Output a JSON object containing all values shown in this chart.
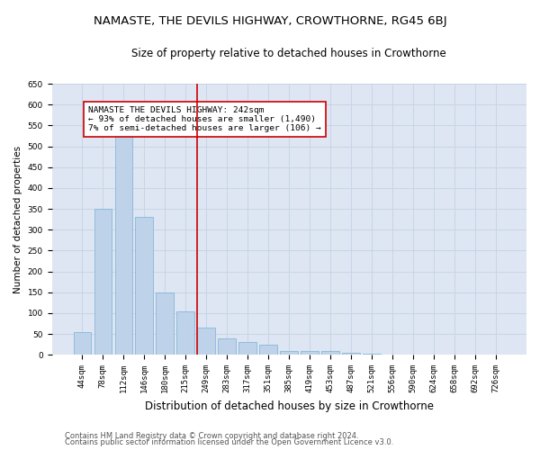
{
  "title": "NAMASTE, THE DEVILS HIGHWAY, CROWTHORNE, RG45 6BJ",
  "subtitle": "Size of property relative to detached houses in Crowthorne",
  "xlabel": "Distribution of detached houses by size in Crowthorne",
  "ylabel": "Number of detached properties",
  "categories": [
    "44sqm",
    "78sqm",
    "112sqm",
    "146sqm",
    "180sqm",
    "215sqm",
    "249sqm",
    "283sqm",
    "317sqm",
    "351sqm",
    "385sqm",
    "419sqm",
    "453sqm",
    "487sqm",
    "521sqm",
    "556sqm",
    "590sqm",
    "624sqm",
    "658sqm",
    "692sqm",
    "726sqm"
  ],
  "values": [
    55,
    350,
    560,
    330,
    150,
    105,
    65,
    40,
    30,
    25,
    10,
    10,
    10,
    5,
    2,
    1,
    0,
    1,
    0,
    0,
    1
  ],
  "bar_color": "#bed3ea",
  "bar_edge_color": "#7aafd4",
  "grid_color": "#c8d4e8",
  "background_color": "#dde6f2",
  "vline_color": "#cc0000",
  "annotation_text": "NAMASTE THE DEVILS HIGHWAY: 242sqm\n← 93% of detached houses are smaller (1,490)\n7% of semi-detached houses are larger (106) →",
  "annotation_box_color": "#ffffff",
  "annotation_box_edge": "#cc0000",
  "ylim": [
    0,
    650
  ],
  "yticks": [
    0,
    50,
    100,
    150,
    200,
    250,
    300,
    350,
    400,
    450,
    500,
    550,
    600,
    650
  ],
  "footer1": "Contains HM Land Registry data © Crown copyright and database right 2024.",
  "footer2": "Contains public sector information licensed under the Open Government Licence v3.0.",
  "title_fontsize": 9.5,
  "subtitle_fontsize": 8.5,
  "xlabel_fontsize": 8.5,
  "ylabel_fontsize": 7.5,
  "tick_fontsize": 6.5,
  "annotation_fontsize": 6.8,
  "footer_fontsize": 6.0
}
